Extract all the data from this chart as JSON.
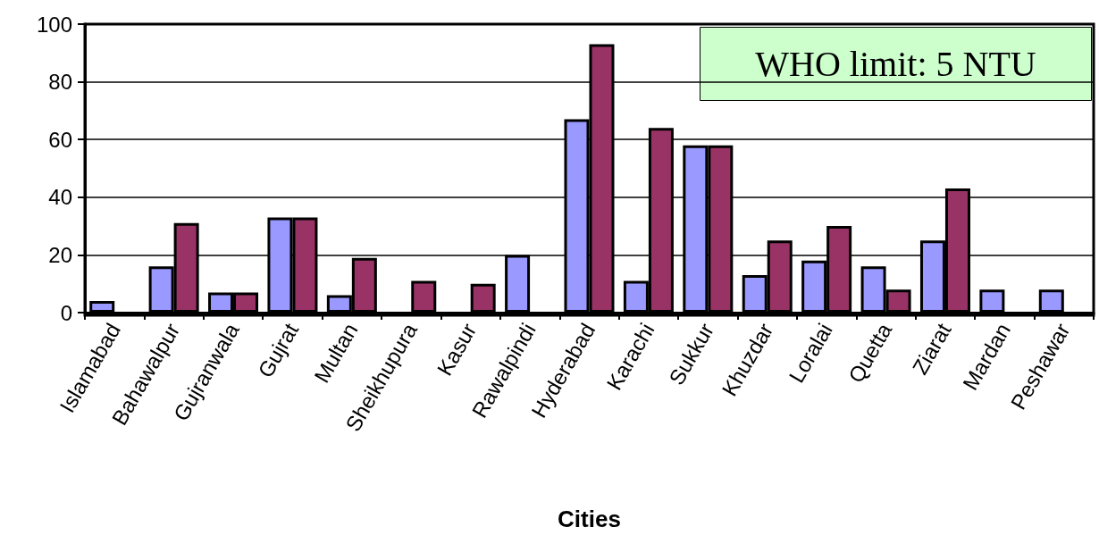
{
  "chart_data": {
    "type": "bar",
    "xlabel": "Cities",
    "categories": [
      "Islamabad",
      "Bahawalpur",
      "Gujranwala",
      "Gujrat",
      "Multan",
      "Sheikhupura",
      "Kasur",
      "Rawalpindi",
      "Hyderabad",
      "Karachi",
      "Sukkur",
      "Khuzdar",
      "Loralai",
      "Quetta",
      "Ziarat",
      "Mardan",
      "Peshawar"
    ],
    "series": [
      {
        "color": "#9999ff",
        "values": [
          4,
          16,
          7,
          33,
          6,
          null,
          null,
          20,
          67,
          11,
          58,
          13,
          18,
          16,
          25,
          8,
          8
        ]
      },
      {
        "color": "#993366",
        "values": [
          null,
          31,
          7,
          33,
          19,
          11,
          10,
          null,
          93,
          64,
          58,
          25,
          30,
          8,
          43,
          null,
          null
        ]
      }
    ],
    "ylim": [
      0,
      100
    ],
    "yticks": [
      0,
      20,
      40,
      60,
      80,
      100
    ],
    "grid": "y",
    "annotations": [
      "WHO limit: 5 NTU"
    ]
  }
}
